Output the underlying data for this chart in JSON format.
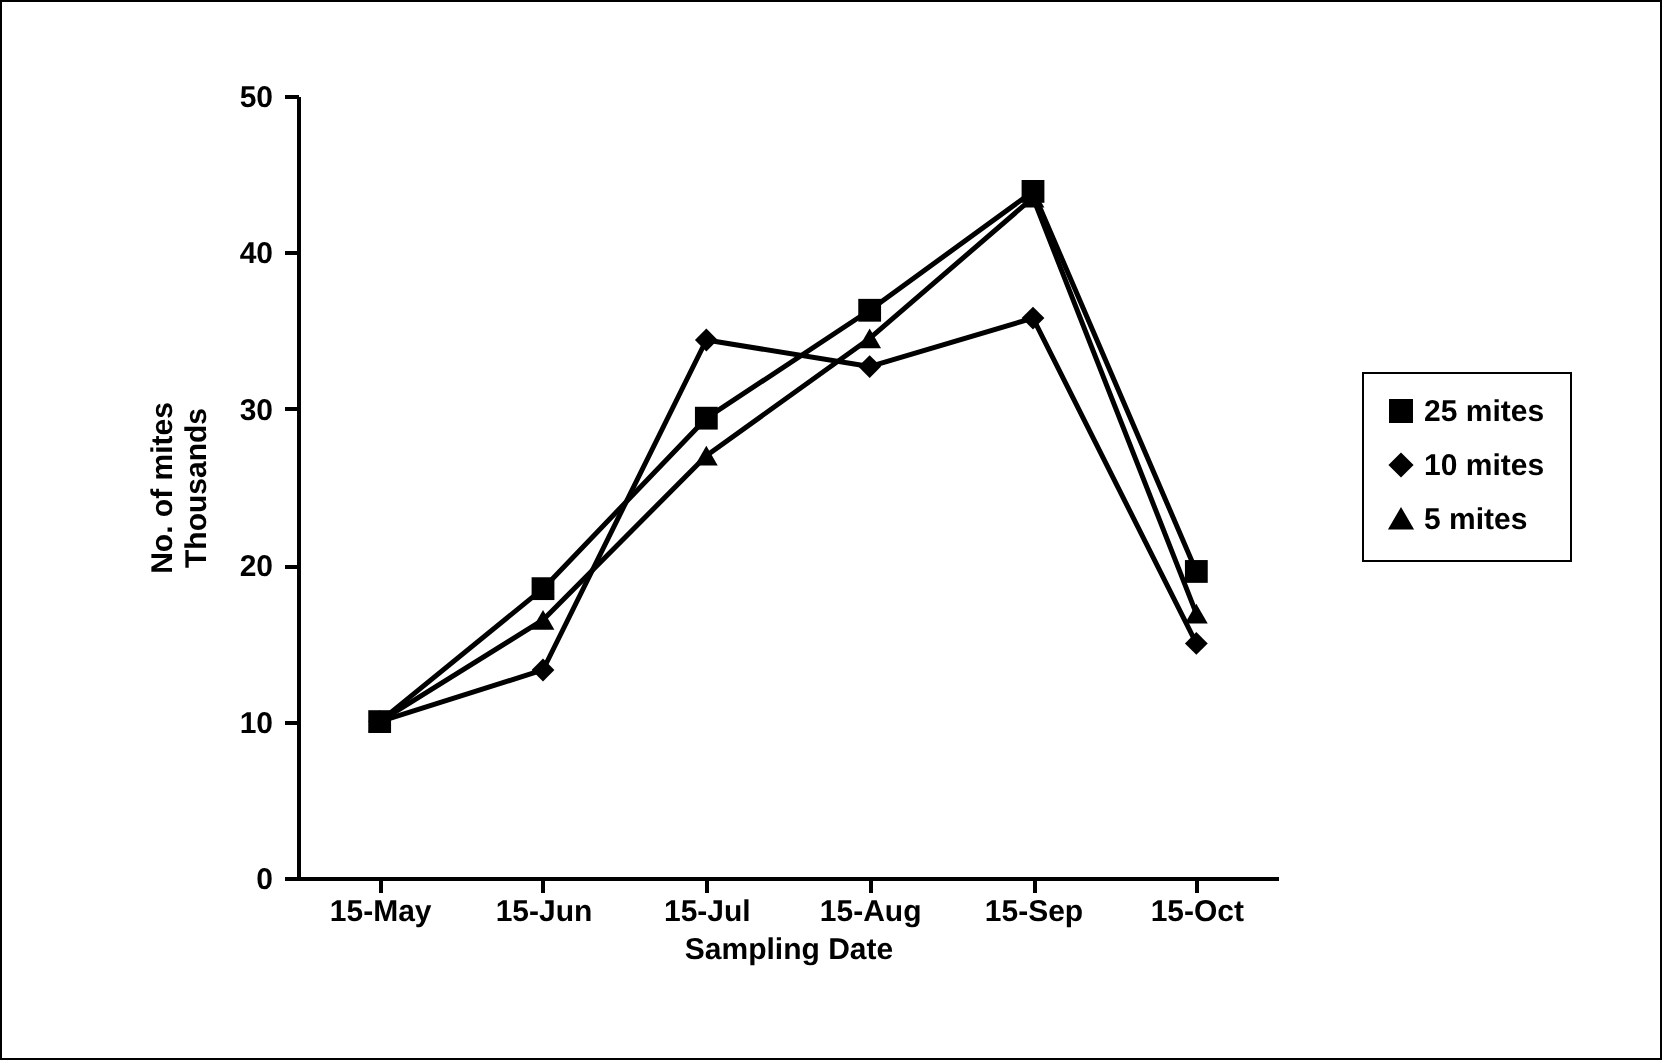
{
  "chart_data": {
    "type": "line",
    "xlabel": "Sampling Date",
    "ylabel": "No. of mites\nThousands",
    "categories": [
      "15-May",
      "15-Jun",
      "15-Jul",
      "15-Aug",
      "15-Sep",
      "15-Oct"
    ],
    "ylim": [
      0,
      50
    ],
    "yticks": [
      0,
      10,
      20,
      30,
      40,
      50
    ],
    "grid": false,
    "legend": "right",
    "line_style": "solid",
    "series": [
      {
        "name": "25 mites",
        "color": "#000000",
        "marker": "square",
        "values": [
          10,
          18.5,
          29.4,
          36.3,
          43.9,
          19.6
        ]
      },
      {
        "name": "10 mites",
        "color": "#000000",
        "marker": "diamond",
        "values": [
          10,
          13.3,
          34.4,
          32.7,
          35.8,
          15.0
        ]
      },
      {
        "name": "5 mites",
        "color": "#000000",
        "marker": "triangle",
        "values": [
          10,
          16.5,
          27.0,
          34.5,
          43.5,
          16.9
        ]
      }
    ]
  }
}
